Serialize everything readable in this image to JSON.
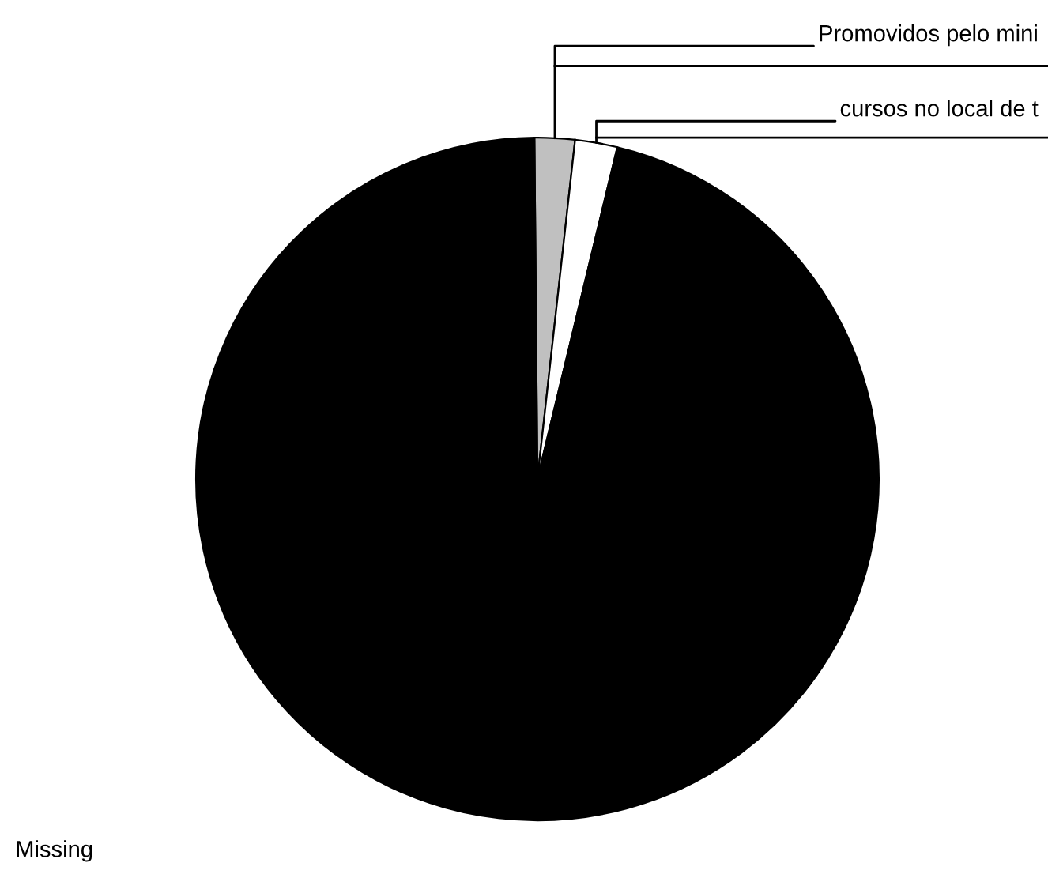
{
  "chart_data": {
    "type": "pie",
    "categories": [
      "Promovidos pelo mini",
      "cursos no local de t",
      "Missing"
    ],
    "values": [
      1.9,
      2.0,
      96.1
    ],
    "colors": [
      "#c0c0c0",
      "#ffffff",
      "#000000"
    ],
    "legend": false
  }
}
